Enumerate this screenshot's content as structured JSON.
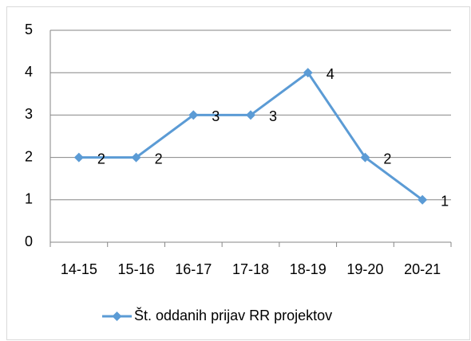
{
  "chart_data": {
    "type": "line",
    "categories": [
      "14-15",
      "15-16",
      "16-17",
      "17-18",
      "18-19",
      "19-20",
      "20-21"
    ],
    "series": [
      {
        "name": "Št. oddanih prijav RR projektov",
        "color": "#5b9bd5",
        "values": [
          2,
          2,
          3,
          3,
          4,
          2,
          1
        ]
      }
    ],
    "ylim": [
      0,
      5
    ],
    "yticks": [
      0,
      1,
      2,
      3,
      4,
      5
    ],
    "grid": true,
    "legend": "bottom",
    "data_labels": true
  }
}
